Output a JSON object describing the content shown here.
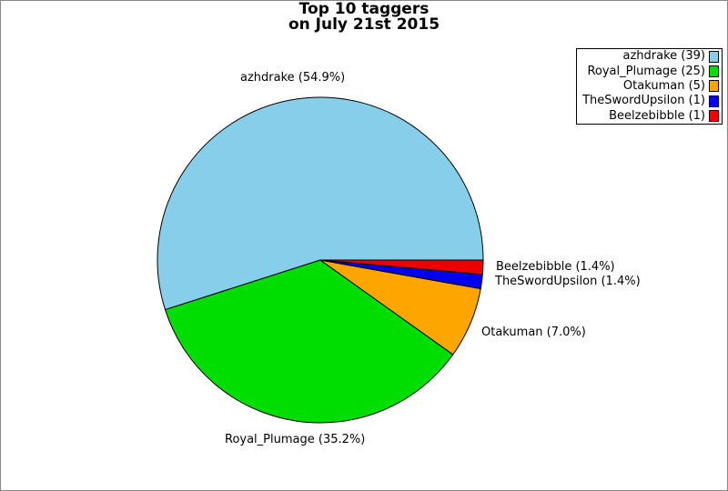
{
  "title": {
    "line1": "Top 10 taggers",
    "line2": "on July 21st 2015"
  },
  "chart_data": {
    "type": "pie",
    "title": "Top 10 taggers on July 21st 2015",
    "total": 71,
    "start_angle_deg": 0,
    "direction": "counterclockwise",
    "legend_position": "top-right",
    "grid": false,
    "outline_color": "#000000",
    "background_color": "#FFFFFF",
    "border_color": "#888888",
    "series": [
      {
        "name": "azhdrake",
        "count": 39,
        "pct": 54.9,
        "color": "#87CEEB",
        "slice_label": "azhdrake (54.9%)",
        "legend_label": "azhdrake (39)"
      },
      {
        "name": "Royal_Plumage",
        "count": 25,
        "pct": 35.2,
        "color": "#00DD00",
        "slice_label": "Royal_Plumage (35.2%)",
        "legend_label": "Royal_Plumage (25)"
      },
      {
        "name": "Otakuman",
        "count": 5,
        "pct": 7.0,
        "color": "#FFA500",
        "slice_label": "Otakuman (7.0%)",
        "legend_label": "Otakuman (5)"
      },
      {
        "name": "TheSwordUpsilon",
        "count": 1,
        "pct": 1.4,
        "color": "#0000EE",
        "slice_label": "TheSwordUpsilon (1.4%)",
        "legend_label": "TheSwordUpsilon (1)"
      },
      {
        "name": "Beelzebibble",
        "count": 1,
        "pct": 1.4,
        "color": "#EE0000",
        "slice_label": "Beelzebibble (1.4%)",
        "legend_label": "Beelzebibble (1)"
      }
    ]
  }
}
